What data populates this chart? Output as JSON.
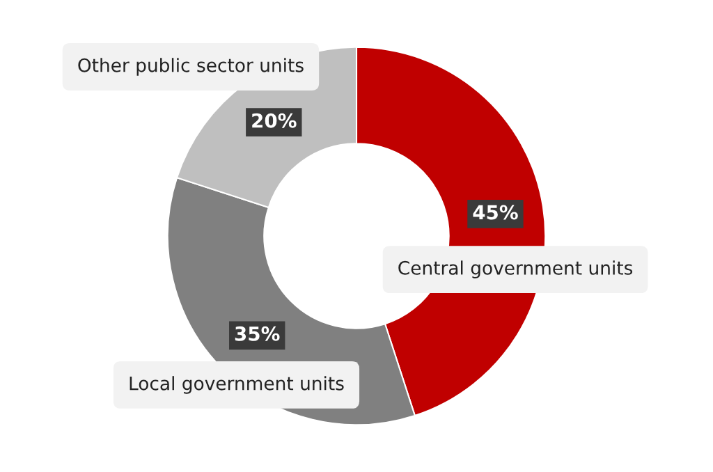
{
  "chart_data": {
    "type": "donut",
    "categories": [
      "Central government units",
      "Local government units",
      "Other public sector units"
    ],
    "values": [
      45,
      35,
      20
    ],
    "colors": [
      "#c00000",
      "#808080",
      "#bfbfbf"
    ],
    "value_labels": [
      "45%",
      "35%",
      "20%"
    ],
    "legend": false
  }
}
